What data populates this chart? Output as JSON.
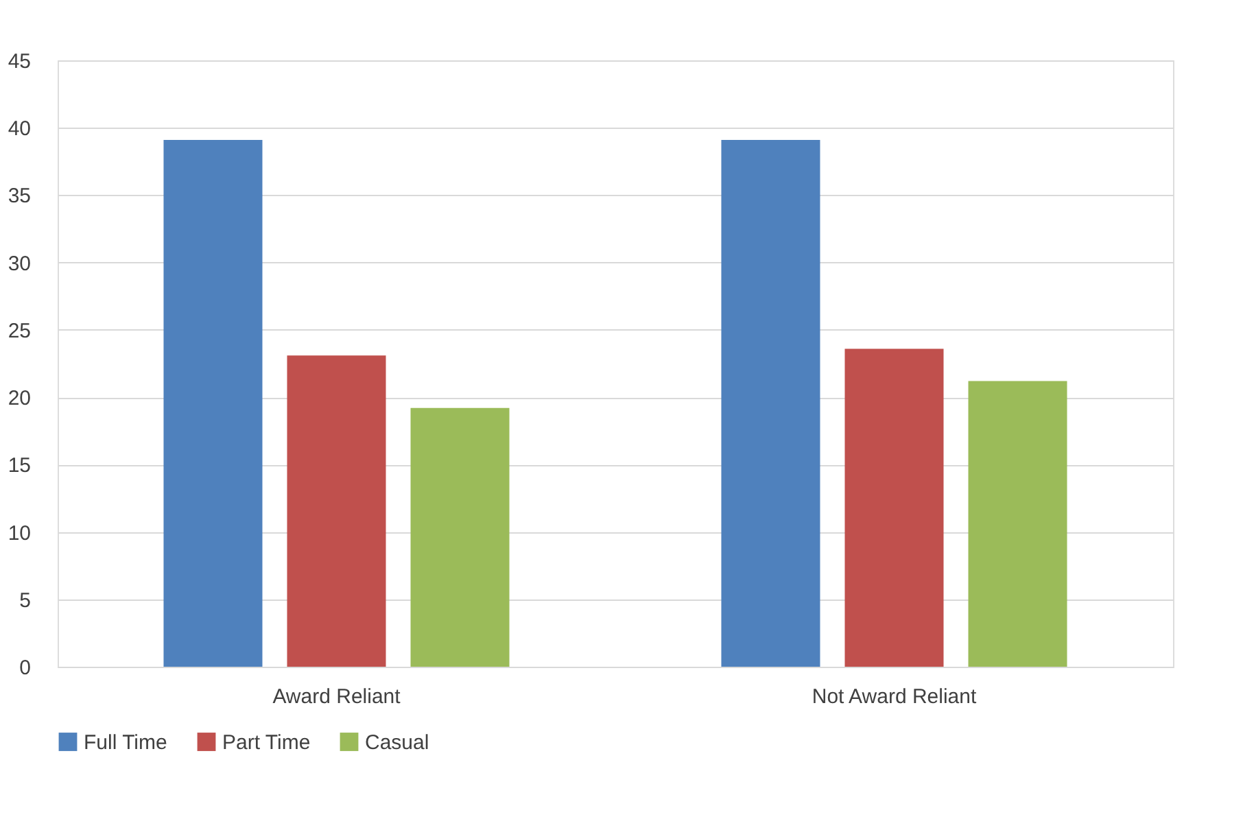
{
  "chart_data": {
    "type": "bar",
    "categories": [
      "Award Reliant",
      "Not Award Reliant"
    ],
    "series": [
      {
        "name": "Full Time",
        "color": "#4f81bd",
        "values": [
          39.1,
          39.1
        ]
      },
      {
        "name": "Part Time",
        "color": "#c0504d",
        "values": [
          23.1,
          23.6
        ]
      },
      {
        "name": "Casual",
        "color": "#9bbb59",
        "values": [
          19.2,
          21.2
        ]
      }
    ],
    "ylim": [
      0,
      45
    ],
    "yticks": [
      0,
      5,
      10,
      15,
      20,
      25,
      30,
      35,
      40,
      45
    ],
    "grid": "y",
    "legend": "bottom"
  }
}
